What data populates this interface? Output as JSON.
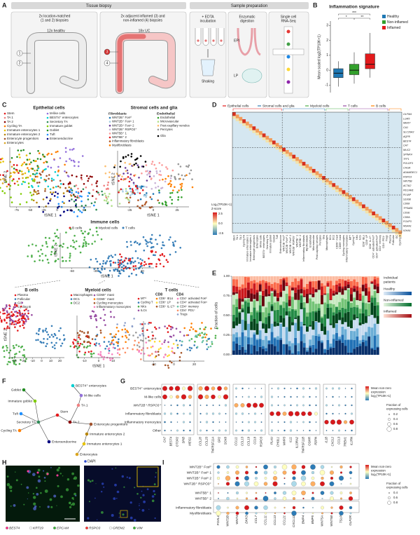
{
  "panel_labels": [
    "A",
    "B",
    "C",
    "D",
    "E",
    "F",
    "G",
    "H",
    "I"
  ],
  "tissue_biopsy": {
    "header": "Tissue biopsy",
    "caption_left": [
      "2x location-matched",
      "(1 and 2) biopsies"
    ],
    "caption_right": [
      "2x adjacent inflamed (3) and",
      "non-inflamed (4) biopsies"
    ],
    "healthy": "12x healthy",
    "uc": "18x UC",
    "sites": [
      "1",
      "2",
      "3",
      "4"
    ]
  },
  "sample_prep": {
    "header": "Sample preparation",
    "edta": [
      "+ EDTA",
      "incubation"
    ],
    "shaking": "Shaking",
    "enzymatic": [
      "Enzymatic",
      "digestion"
    ],
    "epi": "EPI",
    "lp": "LP",
    "scrna": [
      "Single cell",
      "RNA-Seq"
    ]
  },
  "chart_data": {
    "type": "box",
    "title": "Inflammation signature",
    "ylabel": "Mean scaled log2(TP10K+1)",
    "categories": [
      "Healthy",
      "Non-inflamed",
      "Inflamed"
    ],
    "colors": [
      "#1f78b4",
      "#33a02c",
      "#e31a1c"
    ],
    "whisker_low": [
      -1.1,
      -0.9,
      -0.5
    ],
    "q1": [
      -0.5,
      -0.3,
      0.1
    ],
    "median": [
      -0.2,
      0.0,
      0.4
    ],
    "q3": [
      0.1,
      0.4,
      1.1
    ],
    "whisker_high": [
      0.6,
      1.2,
      2.5
    ],
    "ylim": [
      -1.5,
      3.3
    ],
    "yticks": [
      -1,
      0,
      1,
      2,
      3
    ],
    "annotations": [
      "***",
      "*",
      "**"
    ]
  },
  "tsne": {
    "axis_x": "tSNE 1",
    "axis_y": "tSNE 2",
    "epithelial": {
      "title": "Epithelial cells",
      "items": [
        "Stem",
        "TA 1",
        "TA 2",
        "Cycling TA",
        "Immature enterocytes 1",
        "Immature enterocytes 2",
        "Enterocyte progenitors",
        "Enterocytes",
        "M-like cells",
        "BEST4⁺ enterocytes",
        "Secretory TA",
        "Immature goblet",
        "Goblet",
        "Tuft",
        "Enteroendocrine"
      ],
      "xticks": [
        "-75",
        "-50",
        "-25",
        "0",
        "25",
        "50"
      ]
    },
    "stromal": {
      "title": "Stromal cells and glia",
      "fibroblasts": "Fibroblasts",
      "fibroblast_items": [
        "WNT2B⁺ Fosʰⁱ",
        "WNT2B⁺ Fosˡᵒ 1",
        "WNT2B⁺ Fosˡᵒ 2",
        "WNT2B⁺ RSPO3⁺",
        "WNT5B⁺ 1",
        "WNT5B⁺ 2",
        "Inflammatory fibroblasts",
        "Myofibroblasts"
      ],
      "endothelial": "Endothelial",
      "endothelial_items": [
        "Endothelial",
        "Microvascular",
        "Post-capillary venules",
        "Pericytes"
      ],
      "glia": "Glia",
      "xticks": [
        "-25",
        "0",
        "25"
      ]
    },
    "immune": {
      "title": "Immune cells",
      "items": [
        "B cells",
        "Myeloid cells",
        "T cells"
      ],
      "xticks": [
        "-60",
        "-30",
        "0",
        "30"
      ]
    },
    "b_cells": {
      "title": "B cells",
      "items": [
        "Plasma",
        "Follicular",
        "GC",
        "Cycling B"
      ],
      "xticks": [
        "-30",
        "-20",
        "-10",
        "0",
        "10",
        "20"
      ]
    },
    "myeloid": {
      "title": "Myeloid cells",
      "items": [
        "Macrophages",
        "DC1",
        "DC2",
        "CD69⁺ mast",
        "CD69⁻ mast",
        "Cycling monocytes",
        "Inflammatory monocytes"
      ],
      "xticks": [
        "-10",
        "0",
        "10"
      ]
    },
    "t_cells": {
      "title": "T cells",
      "items": [
        "MTʰⁱ",
        "Cycling T",
        "NKs",
        "ILCs"
      ],
      "cd8": "CD8",
      "cd8_items": [
        "CD8⁺ IELs",
        "CD8⁺ LP",
        "CD8⁺ IL-17⁺"
      ],
      "cd4": "CD4",
      "cd4_items": [
        "CD4⁺ activated Fosʰⁱ",
        "CD4⁺ activated Fosˡᵒ",
        "CD4⁺ memory",
        "CD4⁺ PD1⁺",
        "Tregs"
      ],
      "xticks": [
        "-20",
        "0",
        "20"
      ]
    }
  },
  "heatmap": {
    "groups": [
      "Epithelial cells",
      "Stromal cells and glia",
      "Myeloid cells",
      "T cells",
      "B cells"
    ],
    "scale_title": [
      "Log₂(TP10K+1)",
      "Z-score"
    ],
    "scale_ticks": [
      "2.5",
      "0.0",
      "-2.5"
    ],
    "genes": [
      "OLFM4",
      "LGR5",
      "MKI67",
      "CA1",
      "SLC26A3",
      "AQP8",
      "BEST4",
      "CA7",
      "MUC2",
      "SPINK4",
      "TFF1",
      "POU2F3",
      "CHGA",
      "ADAMDEC1",
      "RSPO3",
      "WNT5B",
      "ACTA2",
      "PECAM1",
      "PLVAP",
      "S100B",
      "CD68",
      "TPSAB1",
      "CD3E",
      "CD8A",
      "FOXP3",
      "MS4A1",
      "IGHA1"
    ]
  },
  "fractions": {
    "ylabel": "Fraction of cells",
    "yticks": [
      "0.00",
      "0.25",
      "0.50",
      "0.75",
      "1.00"
    ],
    "legend_title": [
      "Individual",
      "patients"
    ],
    "legend": [
      "Healthy",
      "Non-inflamed",
      "Inflamed"
    ]
  },
  "dotplot_g": {
    "rows": [
      "BEST4⁺ enterocytes",
      "M-like cells",
      "WNT2B⁺ RSPO3⁺",
      "Inflammatory fibroblasts",
      "Inflammatory monocytes",
      "Other"
    ],
    "gene_groups": [
      [
        "CA7",
        "BEST4",
        "OTOP2",
        "SPIB",
        "MEIS1"
      ],
      [
        "CCL20",
        "CCL23",
        "TNFRSF11A",
        "GP2",
        "SOX8"
      ],
      [
        "CCL11",
        "CCL13",
        "CCL19",
        "CCL8",
        "RSPO3"
      ],
      [
        "PLAU",
        "CHI3L1",
        "MMP3",
        "IL11",
        "IL13RA2",
        "TNFRSF11B",
        "OSMR",
        "PDPN"
      ],
      [
        "IL1B",
        "CXCL2",
        "CCL3",
        "TREM1",
        "IL1RN"
      ]
    ],
    "color_title": [
      "Mean non-zero",
      "expression",
      "log₂(TP10K+1)"
    ],
    "size_title": [
      "Fraction of",
      "expressing cells"
    ],
    "size_ticks": [
      "0.2",
      "0.4",
      "0.6",
      "0.8"
    ]
  },
  "imaging": {
    "dapi": "DAPI",
    "left": [
      "BEST4",
      "KRT19",
      "EPCAM"
    ],
    "right": [
      "RSPO3",
      "GREM2",
      "VIM"
    ]
  },
  "dotplot_i": {
    "genes": [
      "FOXL1",
      "WNT2B",
      "WNT4",
      "DKK3",
      "CCL7",
      "CCL11",
      "CCL13",
      "CCL21",
      "CXCL12",
      "BMP4",
      "BMP5",
      "WNT5A",
      "WNT5B",
      "TSLP",
      "GLP2R"
    ],
    "color_title": [
      "Mean non-zero",
      "expression",
      "log₂(TP10K+1)"
    ],
    "size_title": [
      "Fraction of",
      "expressing cells"
    ],
    "size_ticks": [
      "0.4",
      "0.6",
      "0.8"
    ]
  }
}
